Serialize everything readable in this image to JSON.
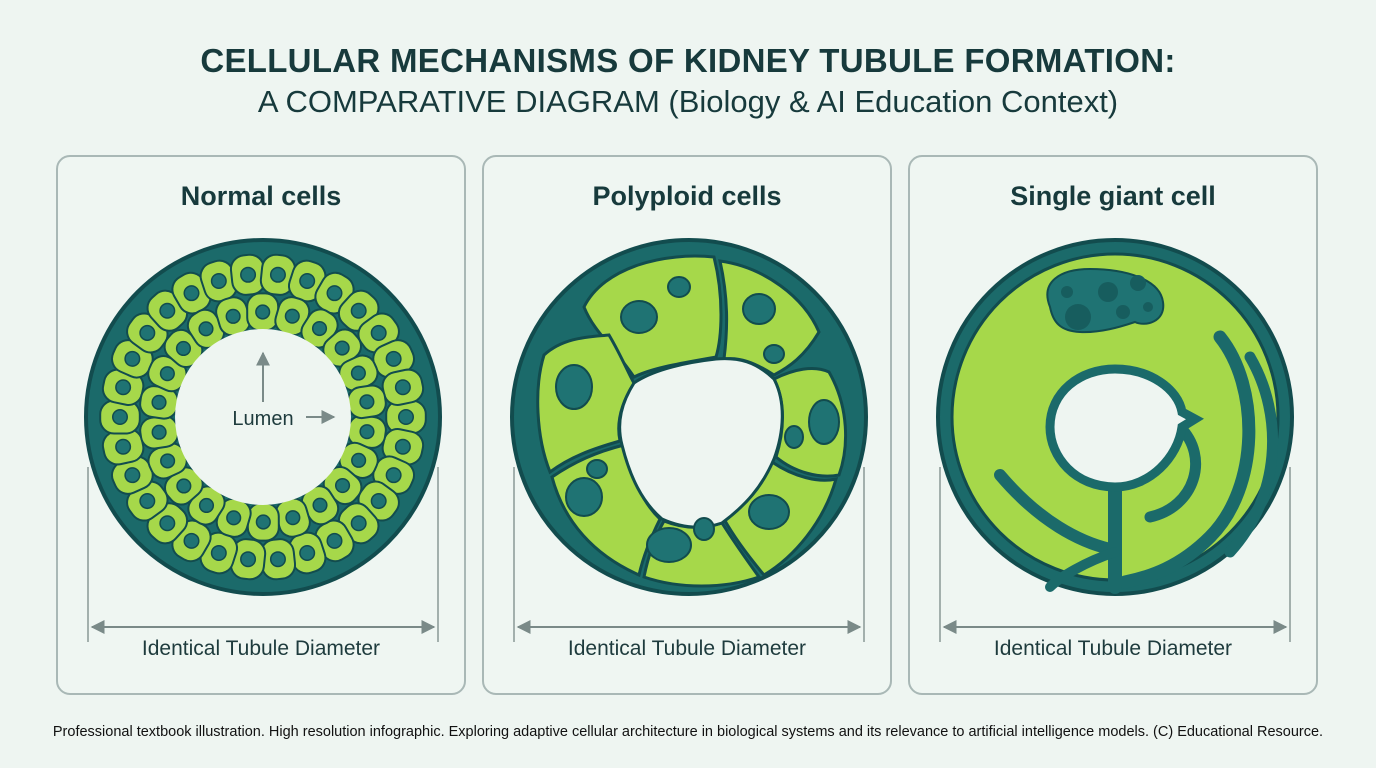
{
  "title": {
    "line1": "CELLULAR MECHANISMS OF KIDNEY TUBULE FORMATION:",
    "line2": "A COMPARATIVE DIAGRAM (Biology & AI Education Context)"
  },
  "panels": [
    {
      "title": "Normal cells",
      "caption": "Identical Tubule Diameter",
      "lumen_label": "Lumen"
    },
    {
      "title": "Polyploid cells",
      "caption": "Identical Tubule Diameter"
    },
    {
      "title": "Single giant cell",
      "caption": "Identical Tubule Diameter"
    }
  ],
  "footer": "Professional textbook illustration. High resolution infographic. Exploring adaptive cellular architecture in biological systems and its relevance to artificial intelligence models. (C) Educational Resource.",
  "colors": {
    "ring": "#1b6a6a",
    "ring_stroke": "#124c4e",
    "cytoplasm": "#a6d84a",
    "nucleus": "#1f7373",
    "lumen": "#eef5f1",
    "arrow": "#7a8a88"
  }
}
